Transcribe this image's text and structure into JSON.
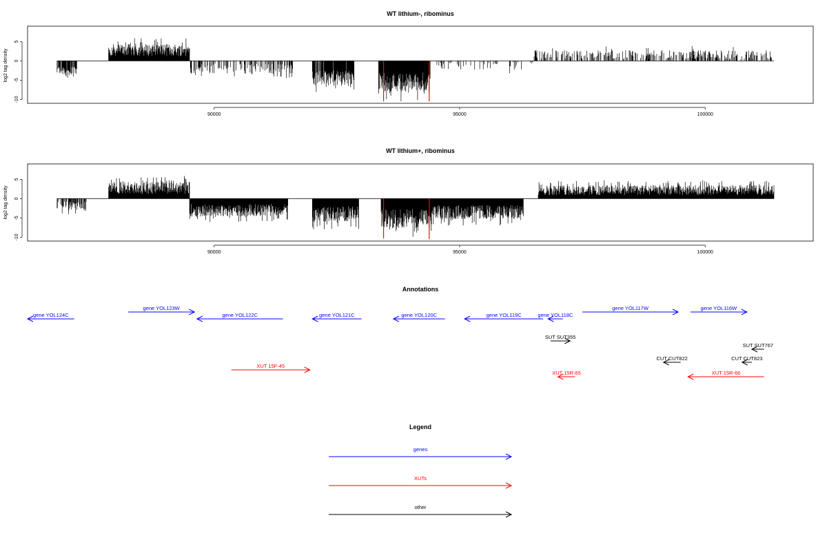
{
  "chart_data": [
    {
      "type": "bar",
      "title": "WT lithium-, ribominus",
      "ylabel": "log2 tag density",
      "xlabel": "",
      "xlim": [
        86200,
        102200
      ],
      "ylim": [
        -11,
        9
      ],
      "x_ticks": [
        90000,
        95000,
        100000
      ],
      "x_tick_labels": [
        "90000",
        "95000",
        "100000"
      ],
      "y_ticks": [
        -10,
        -5,
        0,
        5
      ],
      "y_tick_labels": [
        "-10",
        "-5",
        "0",
        "5"
      ],
      "baseline": [
        86800,
        101400
      ],
      "segments": [
        {
          "start": 86800,
          "end": 87200,
          "mean": -2.5,
          "amp": 1.2,
          "density": 0.8
        },
        {
          "start": 87850,
          "end": 89500,
          "mean": 2.8,
          "amp": 1.6,
          "density": 1.0
        },
        {
          "start": 89500,
          "end": 91600,
          "mean": -2.0,
          "amp": 1.3,
          "density": 0.4
        },
        {
          "start": 92000,
          "end": 92850,
          "mean": -4.5,
          "amp": 2.0,
          "density": 0.9
        },
        {
          "start": 93350,
          "end": 94400,
          "mean": -5.5,
          "amp": 2.5,
          "density": 1.0
        },
        {
          "start": 94400,
          "end": 96500,
          "mean": -1.3,
          "amp": 1.0,
          "density": 0.12
        },
        {
          "start": 96500,
          "end": 101350,
          "mean": 1.6,
          "amp": 1.2,
          "density": 0.4
        }
      ],
      "highlight": [
        {
          "x": 93450,
          "y": -10.5,
          "color": "#ff0000"
        },
        {
          "x": 94380,
          "y": -10.5,
          "color": "#ff0000"
        }
      ]
    },
    {
      "type": "bar",
      "title": "WT lithium+, ribominus",
      "ylabel": "log2 tag density",
      "xlabel": "",
      "xlim": [
        86200,
        102200
      ],
      "ylim": [
        -11,
        9
      ],
      "x_ticks": [
        90000,
        95000,
        100000
      ],
      "x_tick_labels": [
        "90000",
        "95000",
        "100000"
      ],
      "y_ticks": [
        -10,
        -5,
        0,
        5
      ],
      "y_tick_labels": [
        "-10",
        "-5",
        "0",
        "5"
      ],
      "baseline": [
        86800,
        101400
      ],
      "segments": [
        {
          "start": 86800,
          "end": 87400,
          "mean": -2.0,
          "amp": 1.2,
          "density": 0.6
        },
        {
          "start": 87850,
          "end": 89500,
          "mean": 2.8,
          "amp": 1.6,
          "density": 1.0
        },
        {
          "start": 89500,
          "end": 91500,
          "mean": -3.0,
          "amp": 1.6,
          "density": 1.0
        },
        {
          "start": 92000,
          "end": 92950,
          "mean": -4.0,
          "amp": 2.0,
          "density": 1.0
        },
        {
          "start": 93400,
          "end": 94450,
          "mean": -5.2,
          "amp": 2.5,
          "density": 1.0
        },
        {
          "start": 94400,
          "end": 96300,
          "mean": -3.5,
          "amp": 1.8,
          "density": 1.0
        },
        {
          "start": 96600,
          "end": 101400,
          "mean": 2.2,
          "amp": 1.3,
          "density": 1.0
        }
      ],
      "highlight": [
        {
          "x": 93450,
          "y": -10.3,
          "color": "#ff0000"
        },
        {
          "x": 94380,
          "y": -10.5,
          "color": "#ff0000"
        }
      ]
    }
  ],
  "annotations": {
    "title": "Annotations",
    "xlim": [
      86200,
      102200
    ],
    "items": [
      {
        "label": "gene YOL124C",
        "kind": "gene",
        "dir": "left",
        "start": 86200,
        "end": 87150,
        "row": 1
      },
      {
        "label": "gene YOL123W",
        "kind": "gene",
        "dir": "right",
        "start": 88250,
        "end": 89600,
        "row": 0
      },
      {
        "label": "gene YOL122C",
        "kind": "gene",
        "dir": "left",
        "start": 89650,
        "end": 91400,
        "row": 1
      },
      {
        "label": "gene YOL121C",
        "kind": "gene",
        "dir": "left",
        "start": 92000,
        "end": 93000,
        "row": 1
      },
      {
        "label": "gene YOL120C",
        "kind": "gene",
        "dir": "left",
        "start": 93650,
        "end": 94700,
        "row": 1
      },
      {
        "label": "gene YOL119C",
        "kind": "gene",
        "dir": "left",
        "start": 95100,
        "end": 96700,
        "row": 1
      },
      {
        "label": "gene YOL118C",
        "kind": "gene",
        "dir": "left",
        "start": 96800,
        "end": 97100,
        "row": 1
      },
      {
        "label": "gene YOL117W",
        "kind": "gene",
        "dir": "right",
        "start": 97500,
        "end": 99450,
        "row": 0
      },
      {
        "label": "gene YOL116W",
        "kind": "gene",
        "dir": "right",
        "start": 99700,
        "end": 100850,
        "row": 0
      },
      {
        "label": "SUT SUT355",
        "kind": "other",
        "dir": "right",
        "start": 96850,
        "end": 97250,
        "row": 2
      },
      {
        "label": "SUT SUT767",
        "kind": "other",
        "dir": "left",
        "start": 100950,
        "end": 101200,
        "row": 3
      },
      {
        "label": "CUT CUT822",
        "kind": "other",
        "dir": "left",
        "start": 99150,
        "end": 99500,
        "row": 4
      },
      {
        "label": "CUT CUT823",
        "kind": "other",
        "dir": "left",
        "start": 100750,
        "end": 100950,
        "row": 4
      },
      {
        "label": "XUT 15F-45",
        "kind": "xut",
        "dir": "right",
        "start": 90350,
        "end": 91950,
        "row": 5
      },
      {
        "label": "XUT 15R-65",
        "kind": "xut",
        "dir": "left",
        "start": 97000,
        "end": 97350,
        "row": 6
      },
      {
        "label": "XUT 15R-66",
        "kind": "xut",
        "dir": "left",
        "start": 99650,
        "end": 101200,
        "row": 6
      }
    ]
  },
  "legend": {
    "title": "Legend",
    "items": [
      {
        "label": "genes",
        "kind": "gene"
      },
      {
        "label": "XUTs",
        "kind": "xut"
      },
      {
        "label": "other",
        "kind": "other"
      }
    ]
  },
  "colors": {
    "gene": "#0000ff",
    "xut": "#ff0000",
    "other": "#000000",
    "bars": "#000000",
    "axis": "#000000"
  }
}
